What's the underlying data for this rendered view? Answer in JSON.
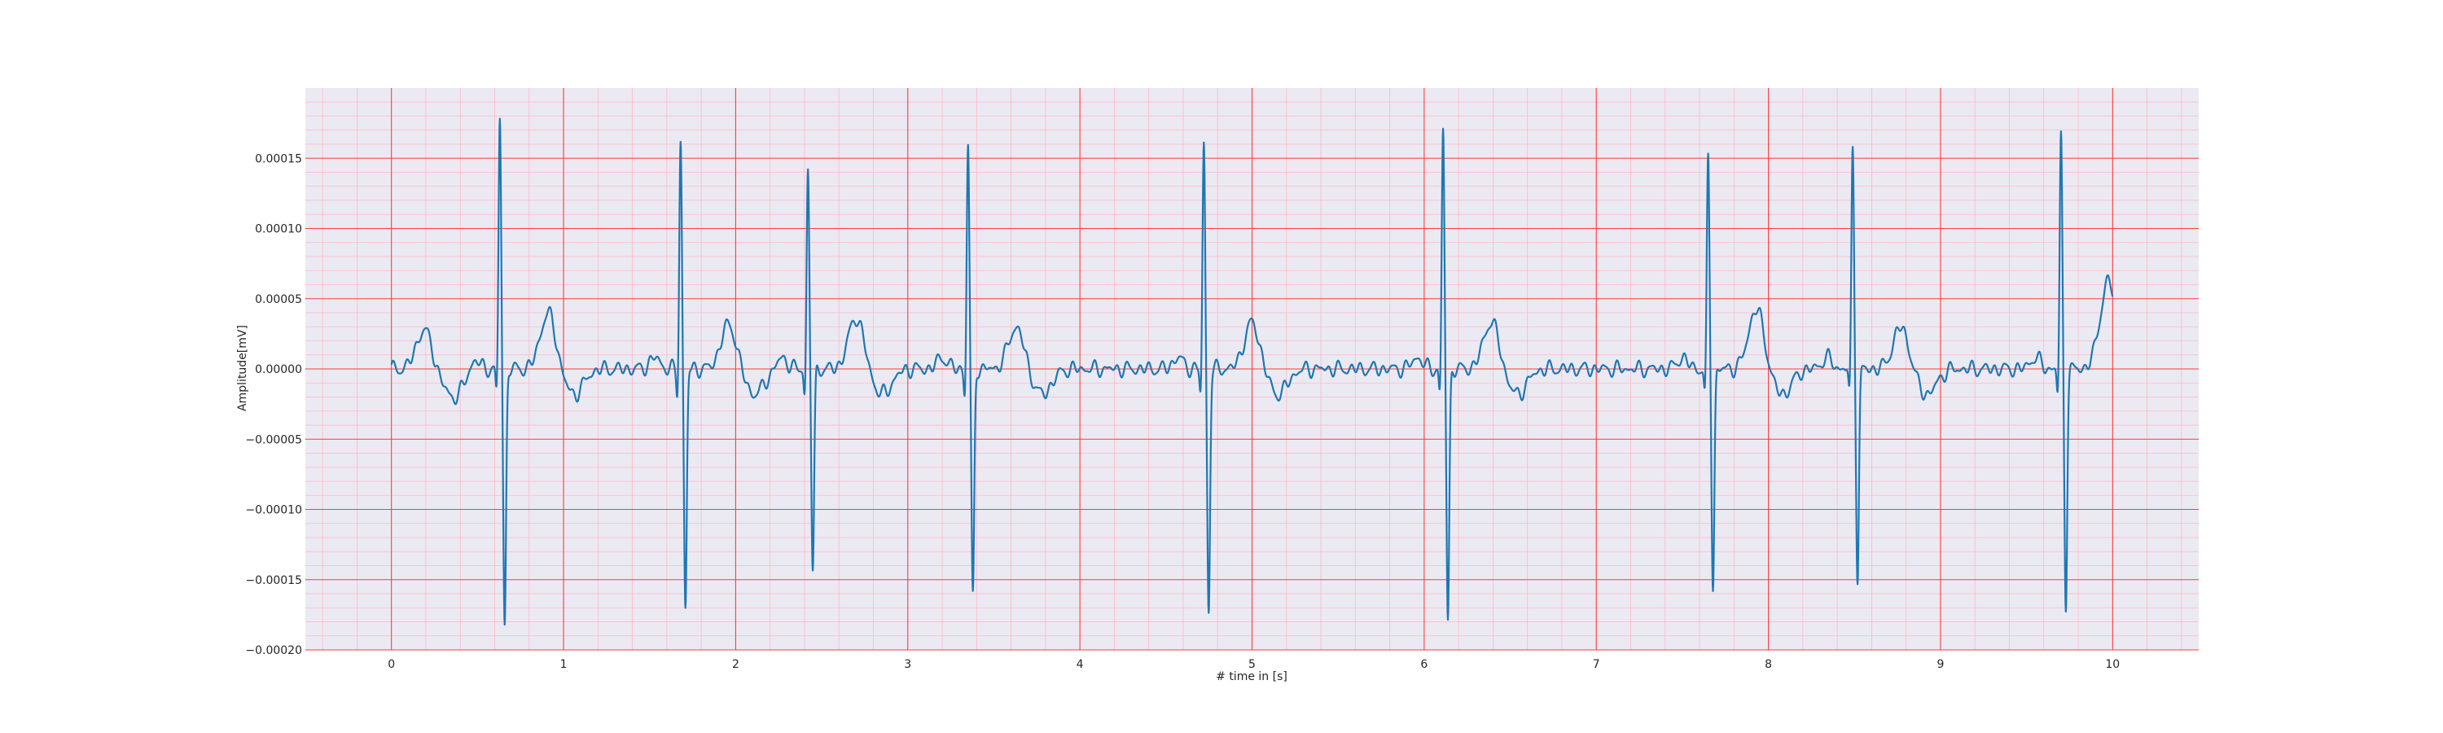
{
  "chart_data": {
    "type": "line",
    "title": "",
    "xlabel": "# time in [s]",
    "ylabel": "Amplitude[mV]",
    "xlim": [
      -0.5,
      10.5
    ],
    "ylim": [
      -0.0002,
      0.0002
    ],
    "grid": true,
    "major_grid_color": "#ff3b3b",
    "minor_grid_color": "#ffb6c8",
    "background_color": "#ebeaf2",
    "line_color": "#1f77b4",
    "x_ticks": [
      0,
      1,
      2,
      3,
      4,
      5,
      6,
      7,
      8,
      9,
      10
    ],
    "x_tick_labels": [
      "0",
      "1",
      "2",
      "3",
      "4",
      "5",
      "6",
      "7",
      "8",
      "9",
      "10"
    ],
    "y_ticks": [
      -0.0002,
      -0.00015,
      -0.0001,
      -5e-05,
      0,
      5e-05,
      0.0001,
      0.00015
    ],
    "y_tick_labels": [
      "−0.00020",
      "−0.00015",
      "−0.00010",
      "−0.00005",
      "0.00000",
      "0.00005",
      "0.00010",
      "0.00015"
    ],
    "beats": [
      {
        "r_time": 0.63,
        "r_peak": 0.00018,
        "s_trough": -0.000184,
        "t_amp": 4e-05
      },
      {
        "r_time": 1.68,
        "r_peak": 0.000163,
        "s_trough": -0.000171,
        "t_amp": 3.2e-05
      },
      {
        "r_time": 2.42,
        "r_peak": 0.000141,
        "s_trough": -0.000143,
        "t_amp": 3.7e-05
      },
      {
        "r_time": 3.35,
        "r_peak": 0.00016,
        "s_trough": -0.000163,
        "t_amp": 3e-05
      },
      {
        "r_time": 4.72,
        "r_peak": 0.000162,
        "s_trough": -0.000173,
        "t_amp": 3.3e-05
      },
      {
        "r_time": 6.11,
        "r_peak": 0.00017,
        "s_trough": -0.000179,
        "t_amp": 3.4e-05
      },
      {
        "r_time": 7.65,
        "r_peak": 0.00015,
        "s_trough": -0.000155,
        "t_amp": 4.3e-05
      },
      {
        "r_time": 8.49,
        "r_peak": 0.000159,
        "s_trough": -0.000151,
        "t_amp": 3e-05
      },
      {
        "r_time": 9.7,
        "r_peak": 0.000166,
        "s_trough": -0.000167,
        "t_amp": 3.3e-05
      }
    ],
    "signal_start_time": 0,
    "signal_end_time": 10,
    "signal_end_value": 3e-05
  }
}
